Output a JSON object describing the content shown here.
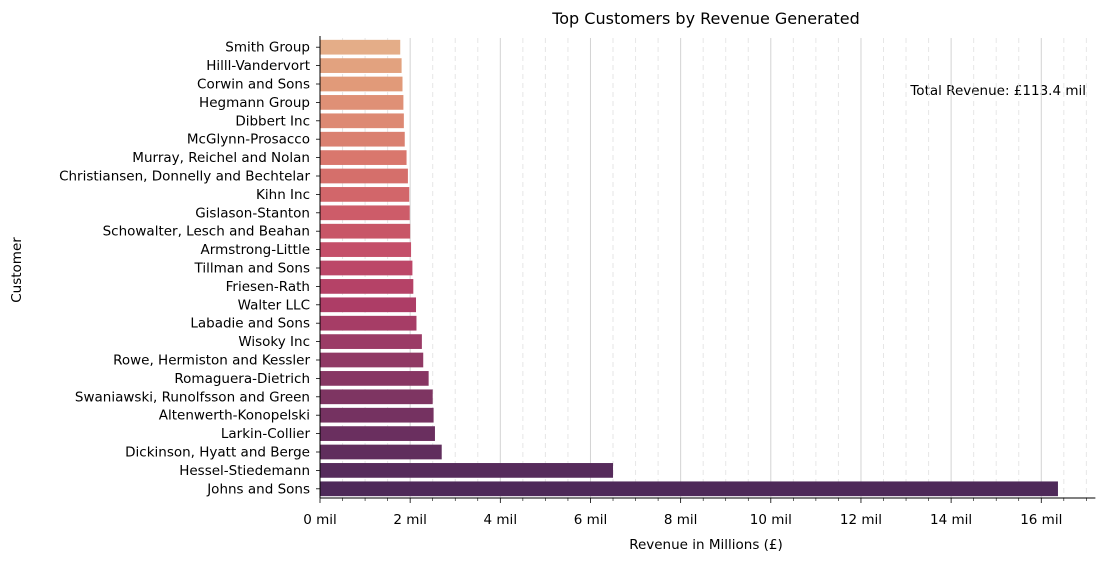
{
  "chart_data": {
    "type": "bar",
    "orientation": "horizontal",
    "title": "Top Customers by Revenue Generated",
    "xlabel": "Revenue in Millions (£)",
    "ylabel": "Customer",
    "annotation": "Total Revenue: £113.4 mil",
    "xlim": [
      0,
      17.2
    ],
    "x_ticks": [
      0,
      2,
      4,
      6,
      8,
      10,
      12,
      14,
      16
    ],
    "x_tick_labels": [
      "0 mil",
      "2 mil",
      "4 mil",
      "6 mil",
      "8 mil",
      "10 mil",
      "12 mil",
      "14 mil",
      "16 mil"
    ],
    "grid": {
      "major": true,
      "minor": true,
      "axis": "x"
    },
    "categories": [
      "Smith Group",
      "Hilll-Vandervort",
      "Corwin and Sons",
      "Hegmann Group",
      "Dibbert Inc",
      "McGlynn-Prosacco",
      "Murray, Reichel and Nolan",
      "Christiansen, Donnelly and Bechtelar",
      "Kihn Inc",
      "Gislason-Stanton",
      "Schowalter, Lesch and Beahan",
      "Armstrong-Little",
      "Tillman and Sons",
      "Friesen-Rath",
      "Walter LLC",
      "Labadie and Sons",
      "Wisoky Inc",
      "Rowe, Hermiston and Kessler",
      "Romaguera-Dietrich",
      "Swaniawski, Runolfsson and Green",
      "Altenwerth-Konopelski",
      "Larkin-Collier",
      "Dickinson, Hyatt and Berge",
      "Hessel-Stiedemann",
      "Johns and Sons"
    ],
    "values": [
      1.78,
      1.81,
      1.83,
      1.85,
      1.86,
      1.88,
      1.92,
      1.95,
      1.98,
      1.99,
      2.0,
      2.02,
      2.05,
      2.07,
      2.13,
      2.14,
      2.26,
      2.29,
      2.41,
      2.5,
      2.52,
      2.55,
      2.7,
      6.5,
      16.37
    ],
    "colors": [
      "#e4ad88",
      "#e2a27f",
      "#e19a79",
      "#df9076",
      "#dd8973",
      "#da8070",
      "#d9776d",
      "#d56f6b",
      "#d2666a",
      "#cd5c69",
      "#c85667",
      "#c44f69",
      "#bc4768",
      "#b54267",
      "#ad3d66",
      "#a63d66",
      "#9b3b66",
      "#903964",
      "#873663",
      "#7e3562",
      "#753261",
      "#6a2f5f",
      "#602e5d",
      "#562b5b",
      "#4e2959"
    ]
  }
}
